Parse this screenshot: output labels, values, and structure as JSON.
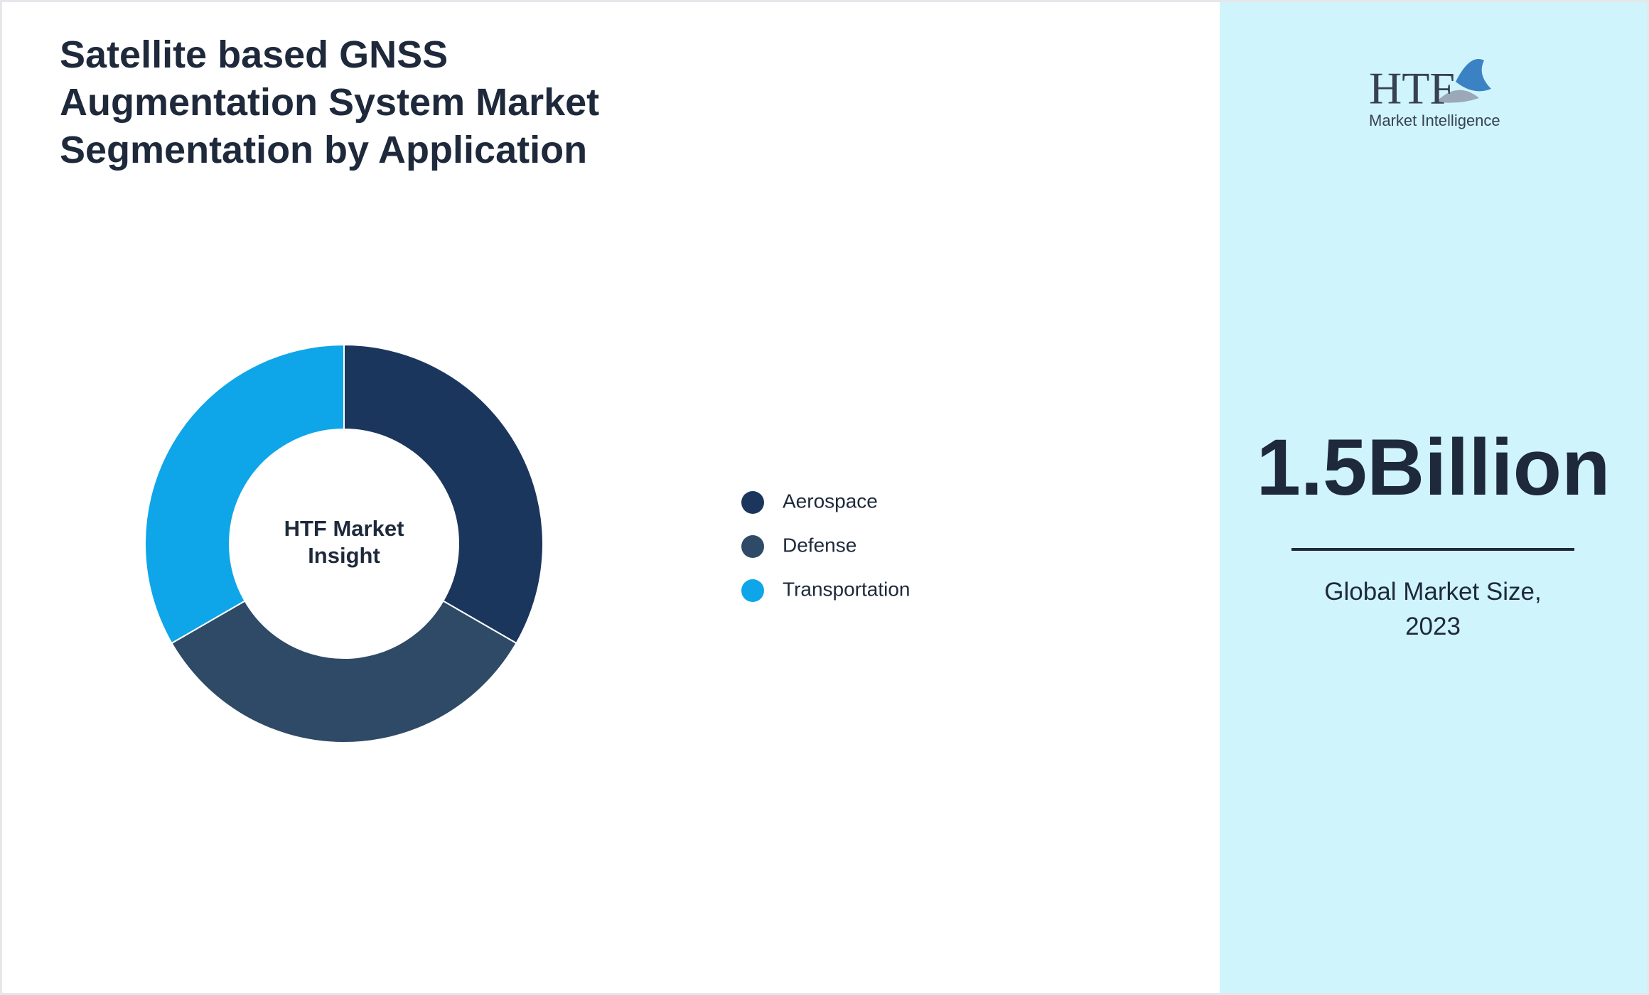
{
  "chart_data": {
    "type": "pie",
    "title": "Satellite based GNSS Augmentation System Market Segmentation by Application",
    "categories": [
      "Aerospace",
      "Defense",
      "Transportation"
    ],
    "values": [
      33.3,
      33.3,
      33.3
    ],
    "colors": [
      "#1b365d",
      "#2e4a66",
      "#0ea5e9"
    ],
    "center_text": [
      "HTF Market",
      "Insight"
    ]
  },
  "sidebar": {
    "value": "1.5Billion",
    "caption": "Global Market Size, 2023"
  },
  "logo": {
    "text": "HTF",
    "subtext": "Market Intelligence"
  }
}
